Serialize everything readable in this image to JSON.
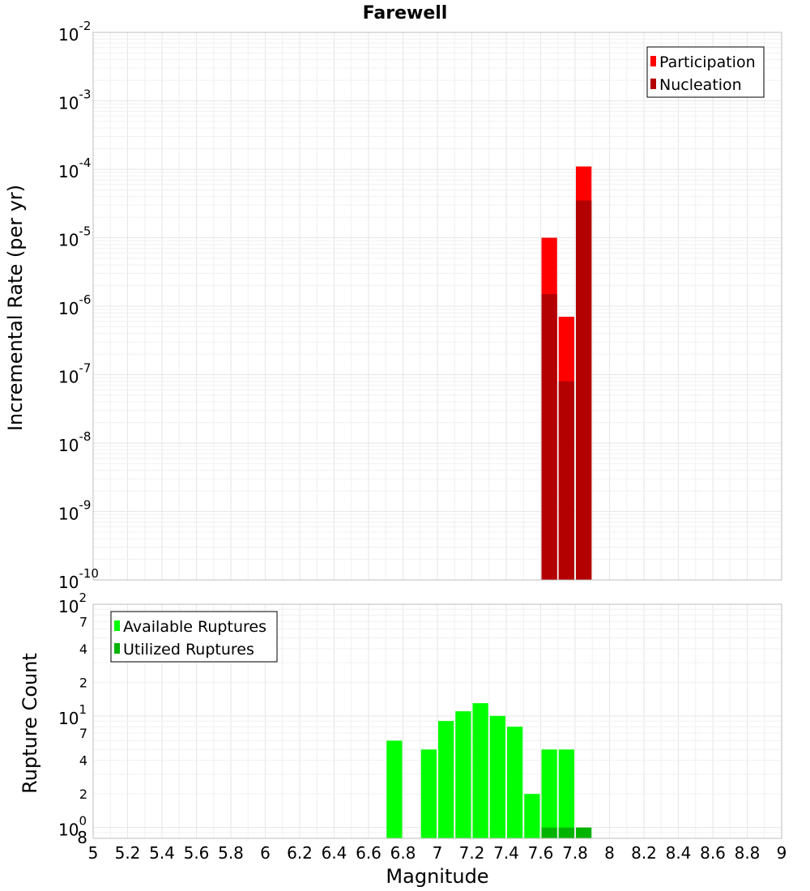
{
  "chart_data": [
    {
      "type": "bar",
      "title": "Farewell",
      "xlabel": "",
      "ylabel": "Incremental Rate (per yr)",
      "yscale": "log",
      "xlim": [
        5,
        9
      ],
      "ylim": [
        1e-10,
        0.01
      ],
      "bar_width": 0.1,
      "y_tick_exponents": [
        "-2",
        "-3",
        "-4",
        "-5",
        "-6",
        "-7",
        "-8",
        "-9",
        "-10"
      ],
      "legend_position": "top-right",
      "series": [
        {
          "name": "Participation",
          "color": "#ff0000",
          "x": [
            7.65,
            7.75,
            7.85
          ],
          "values": [
            1e-05,
            7e-07,
            0.00011
          ]
        },
        {
          "name": "Nucleation",
          "color": "#b30000",
          "x": [
            7.65,
            7.75,
            7.85
          ],
          "values": [
            1.5e-06,
            8e-08,
            3.5e-05
          ]
        }
      ]
    },
    {
      "type": "bar",
      "title": "",
      "xlabel": "Magnitude",
      "ylabel": "Rupture Count",
      "yscale": "log",
      "xlim": [
        5,
        9
      ],
      "ylim": [
        0.8,
        100
      ],
      "bar_width": 0.1,
      "x_ticks": [
        "5",
        "5.2",
        "5.4",
        "5.6",
        "5.8",
        "6",
        "6.2",
        "6.4",
        "6.6",
        "6.8",
        "7",
        "7.2",
        "7.4",
        "7.6",
        "7.8",
        "8",
        "8.2",
        "8.4",
        "8.6",
        "8.8",
        "9"
      ],
      "y_major_ticks": [
        {
          "base": "10",
          "exp": "2",
          "value": 100
        },
        {
          "base": "10",
          "exp": "1",
          "value": 10
        },
        {
          "base": "10",
          "exp": "0",
          "value": 1
        }
      ],
      "y_minor_ticks": [
        {
          "label": "7",
          "value": 70
        },
        {
          "label": "4",
          "value": 40
        },
        {
          "label": "2",
          "value": 20
        },
        {
          "label": "7",
          "value": 7
        },
        {
          "label": "4",
          "value": 4
        },
        {
          "label": "2",
          "value": 2
        },
        {
          "label": "8",
          "value": 0.8
        }
      ],
      "legend_position": "top-left",
      "series": [
        {
          "name": "Available Ruptures",
          "color": "#00ff00",
          "x": [
            6.75,
            6.95,
            7.05,
            7.15,
            7.25,
            7.35,
            7.45,
            7.55,
            7.65,
            7.75
          ],
          "values": [
            6,
            5,
            9,
            11,
            13,
            10,
            8,
            2,
            5,
            5
          ]
        },
        {
          "name": "Utilized Ruptures",
          "color": "#00b300",
          "x": [
            7.65,
            7.75,
            7.85
          ],
          "values": [
            1,
            1,
            1
          ]
        }
      ]
    }
  ]
}
